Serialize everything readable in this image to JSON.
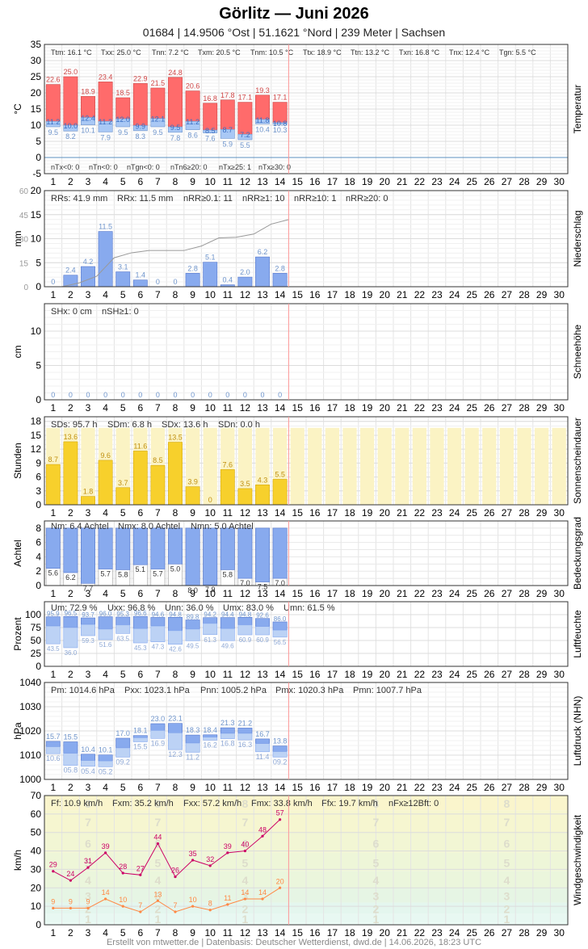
{
  "header": {
    "title": "Görlitz  —  Juni 2026",
    "subtitle": "01684  |  14.9506 °Ost  |  51.1621 °Nord  |  239 Meter  |  Sachsen"
  },
  "footer": "Erstellt von mtwetter.de | Datenbasis: Deutscher Wetterdienst, dwd.de | 14.06.2026, 18:23 UTC",
  "colors": {
    "tmax": "#ff6b6b",
    "tmin": "#a9c8f5",
    "rain": "#88aaee",
    "sun": "#f7d02c",
    "sun_bg": "#fbf3c4",
    "cloud": "#88aaee",
    "wind_line": "#cc0066",
    "gust_line": "#ff8844",
    "today_line": "#ff9999"
  },
  "chart_data": [
    {
      "type": "bar",
      "name": "Temperatur",
      "ylabel": "°C",
      "ylim": [
        -5,
        35
      ],
      "yticks": [
        35,
        30,
        25,
        20,
        15,
        10,
        5,
        0,
        -5
      ],
      "x": [
        1,
        2,
        3,
        4,
        5,
        6,
        7,
        8,
        9,
        10,
        11,
        12,
        13,
        14
      ],
      "x_ticks": [
        1,
        2,
        3,
        4,
        5,
        6,
        7,
        8,
        9,
        10,
        11,
        12,
        13,
        14,
        15,
        16,
        17,
        18,
        19,
        20,
        21,
        22,
        23,
        24,
        25,
        26,
        27,
        28,
        29,
        30
      ],
      "tmax": [
        22.6,
        25.0,
        18.9,
        23.4,
        18.5,
        22.9,
        21.5,
        24.8,
        20.6,
        16.8,
        17.8,
        17.1,
        19.3,
        17.1
      ],
      "tmean": [
        11.2,
        10.0,
        12.4,
        11.2,
        12.0,
        9.9,
        12.1,
        9.5,
        11.2,
        8.5,
        8.7,
        7.2,
        11.8,
        10.8
      ],
      "tmin": [
        9.5,
        8.2,
        10.1,
        7.9,
        9.5,
        8.3,
        9.5,
        7.8,
        8.6,
        7.6,
        5.9,
        5.5,
        10.4,
        10.3
      ],
      "stats_top": [
        "Ttm: 16.1 °C",
        "Txx: 25.0 °C",
        "Tnn: 7.2 °C",
        "Txm: 20.5 °C",
        "Tnm: 10.5 °C",
        "Ttx: 18.9 °C",
        "Ttn: 13.2 °C",
        "Txn: 16.8 °C",
        "Tnx: 12.4 °C",
        "Tgn: 5.5 °C"
      ],
      "stats_bottom": [
        "nTx<0: 0",
        "nTn<0: 0",
        "nTgn<0: 0",
        "nTn6≥20: 0",
        "nTx≥25: 1",
        "nTx≥30: 0"
      ]
    },
    {
      "type": "bar",
      "name": "Niederschlag",
      "ylabel": "mm",
      "ylim": [
        0,
        20
      ],
      "yticks_left": [
        "60",
        "45",
        "30",
        "15",
        "0"
      ],
      "yticks_right": [
        "20",
        "15",
        "10",
        "5",
        "0"
      ],
      "x": [
        1,
        2,
        3,
        4,
        5,
        6,
        7,
        8,
        9,
        10,
        11,
        12,
        13,
        14
      ],
      "values": [
        0,
        2.4,
        4.2,
        11.5,
        3.1,
        1.4,
        0,
        0,
        2.8,
        5.1,
        0.4,
        2.0,
        6.2,
        2.8
      ],
      "cumulative": [
        0,
        2.4,
        6.6,
        18.1,
        21.2,
        22.6,
        22.6,
        22.6,
        25.4,
        30.5,
        30.9,
        32.9,
        39.1,
        41.9
      ],
      "labels": [
        "0",
        "2.4",
        "4.2",
        "11.5",
        "3.1",
        "1.4",
        "0",
        "0",
        "2.8",
        "5.1",
        "0.4",
        "2.0",
        "6.2",
        "2.8"
      ],
      "stats": [
        "RRs: 41.9 mm",
        "RRx: 11.5 mm",
        "nRR≥0.1: 11",
        "nRR≥1: 10",
        "nRR≥10: 1",
        "nRR≥20: 0"
      ]
    },
    {
      "type": "bar",
      "name": "Schneehöhe",
      "ylabel": "cm",
      "ylim": [
        0,
        14
      ],
      "yticks": [
        "10",
        "5",
        "0"
      ],
      "x": [
        1,
        2,
        3,
        4,
        5,
        6,
        7,
        8,
        9,
        10,
        11,
        12,
        13,
        14
      ],
      "values": [
        0,
        0,
        0,
        0,
        0,
        0,
        0,
        0,
        0,
        0,
        0,
        0,
        0,
        0
      ],
      "stats": [
        "SHx: 0 cm",
        "nSH≥1: 0"
      ]
    },
    {
      "type": "bar",
      "name": "Sonnenscheindauer",
      "ylabel": "Stunden",
      "ylim": [
        0,
        19
      ],
      "yticks": [
        "18",
        "15",
        "12",
        "9",
        "6",
        "3",
        "0"
      ],
      "x": [
        1,
        2,
        3,
        4,
        5,
        6,
        7,
        8,
        9,
        10,
        11,
        12,
        13,
        14
      ],
      "values": [
        8.7,
        13.6,
        1.8,
        9.6,
        3.7,
        11.6,
        8.5,
        13.5,
        3.9,
        0,
        7.6,
        3.5,
        4.3,
        5.5
      ],
      "max_possible": 16.6,
      "stats": [
        "SDs: 95.7 h",
        "SDm: 6.8 h",
        "SDx: 13.6 h",
        "SDn: 0.0 h"
      ]
    },
    {
      "type": "bar",
      "name": "Bedeckungsgrad",
      "ylabel": "Achtel",
      "ylim": [
        0,
        9
      ],
      "yticks": [
        "8",
        "6",
        "4",
        "2",
        "0"
      ],
      "x": [
        1,
        2,
        3,
        4,
        5,
        6,
        7,
        8,
        9,
        10,
        11,
        12,
        13,
        14
      ],
      "values": [
        5.6,
        6.2,
        7.7,
        5.7,
        5.8,
        5.1,
        5.7,
        5.0,
        8.0,
        7.9,
        5.8,
        7.0,
        7.5,
        7.0
      ],
      "stats": [
        "Nm: 6.4 Achtel",
        "Nmx: 8.0 Achtel",
        "Nmn: 5.0 Achtel"
      ]
    },
    {
      "type": "bar",
      "name": "Luftfeuchte",
      "ylabel": "Prozent",
      "ylim": [
        0,
        125
      ],
      "yticks": [
        "100",
        "75",
        "50",
        "25",
        "0"
      ],
      "x": [
        1,
        2,
        3,
        4,
        5,
        6,
        7,
        8,
        9,
        10,
        11,
        12,
        13,
        14
      ],
      "max": [
        95.9,
        96.5,
        93.7,
        96.0,
        95.3,
        96.6,
        94.6,
        94.8,
        89.8,
        94.2,
        94.4,
        94.8,
        92.6,
        86.0
      ],
      "mean": [
        78,
        75,
        81,
        72,
        80,
        73,
        78,
        69,
        72,
        83,
        73,
        80,
        77,
        70
      ],
      "min": [
        43.5,
        36.0,
        59.3,
        51.6,
        63.5,
        45.3,
        47.3,
        42.6,
        49.5,
        61.3,
        49.6,
        60.9,
        60.9,
        56.5
      ],
      "stats": [
        "Um: 72.9 %",
        "Uxx: 96.8 %",
        "Unn: 36.0 %",
        "Umx: 83.0 %",
        "Umn: 61.5 %"
      ]
    },
    {
      "type": "bar",
      "name": "Luftdruck (NHN)",
      "ylabel": "hPa",
      "ylim": [
        1000,
        1040
      ],
      "yticks": [
        "1040",
        "1030",
        "1020",
        "1010",
        "1000"
      ],
      "x": [
        1,
        2,
        3,
        4,
        5,
        6,
        7,
        8,
        9,
        10,
        11,
        12,
        13,
        14
      ],
      "max": [
        1015.7,
        1015.5,
        1010.4,
        1010.1,
        1017.0,
        1018.1,
        1023.0,
        1023.1,
        1018.3,
        1018.4,
        1021.3,
        1021.2,
        1016.7,
        1013.8
      ],
      "mean": [
        1013.5,
        1010.8,
        1007.8,
        1007.6,
        1013.0,
        1017.2,
        1020.2,
        1019.2,
        1015.0,
        1017.4,
        1019.0,
        1019.0,
        1014.8,
        1011.5
      ],
      "min": [
        1010.6,
        1005.8,
        1005.4,
        1005.2,
        1009.2,
        1015.5,
        1016.9,
        1012.3,
        1011.2,
        1016.2,
        1016.8,
        1016.3,
        1011.4,
        1009.2
      ],
      "max_labels": [
        "15.7",
        "15.5",
        "10.4",
        "10.1",
        "17.0",
        "18.1",
        "23.0",
        "23.1",
        "18.3",
        "18.4",
        "21.3",
        "21.2",
        "16.7",
        "13.8"
      ],
      "min_labels": [
        "10.6",
        "05.8",
        "05.4",
        "05.2",
        "09.2",
        "15.5",
        "16.9",
        "12.3",
        "11.2",
        "16.2",
        "16.8",
        "16.3",
        "11.4",
        "09.2"
      ],
      "stats": [
        "Pm: 1014.6 hPa",
        "Pxx: 1023.1 hPa",
        "Pnn: 1005.2 hPa",
        "Pmx: 1020.3 hPa",
        "Pmn: 1007.7 hPa"
      ]
    },
    {
      "type": "line",
      "name": "Windgeschwindigkeit",
      "ylabel": "km/h",
      "ylim": [
        0,
        70
      ],
      "yticks": [
        "70",
        "60",
        "50",
        "40",
        "30",
        "20",
        "10",
        "0"
      ],
      "x": [
        1,
        2,
        3,
        4,
        5,
        6,
        7,
        8,
        9,
        10,
        11,
        12,
        13,
        14
      ],
      "series": [
        {
          "name": "",
          "values": [
            29,
            24,
            31,
            39,
            28,
            27,
            44,
            26,
            35,
            32,
            39,
            40,
            48,
            57
          ]
        },
        {
          "name": "",
          "values": [
            9,
            9,
            9,
            14,
            10,
            7,
            13,
            7,
            10,
            8,
            11,
            14,
            14,
            20
          ]
        }
      ],
      "bft_labels": [
        "1",
        "2",
        "3",
        "4",
        "5",
        "6",
        "7",
        "8"
      ],
      "stats": [
        "Ff: 10.9 km/h",
        "Fxm: 35.2 km/h",
        "Fxx: 57.2 km/h",
        "Fmx: 33.8 km/h",
        "Ffx: 19.7 km/h",
        "nFx≥12Bft: 0"
      ]
    }
  ]
}
